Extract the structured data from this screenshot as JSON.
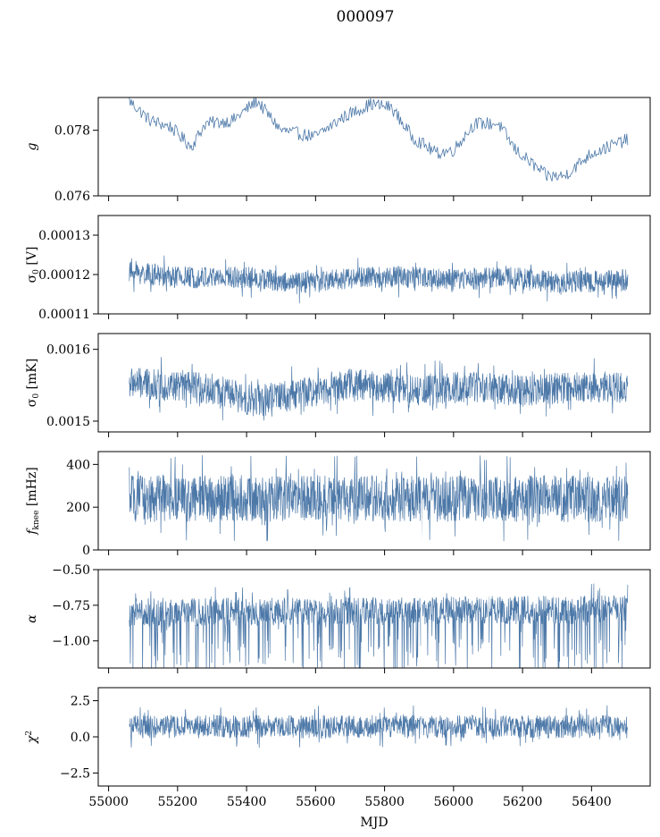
{
  "figure": {
    "title": "000097",
    "xlabel": "MJD"
  },
  "colors": {
    "series": "#4c78a8",
    "axis": "#000000"
  },
  "chart_data": [
    {
      "type": "line",
      "ylabel": "g",
      "ylim": [
        0.076,
        0.079
      ],
      "yticks": [
        0.076,
        0.078
      ],
      "ytick_labels": [
        "0.076",
        "0.078"
      ],
      "xlim": [
        54970,
        56570
      ],
      "xticks": [
        55000,
        55200,
        55400,
        55600,
        55800,
        56000,
        56200,
        56400
      ],
      "show_xtick_labels": false,
      "trend": [
        [
          55060,
          0.0789
        ],
        [
          55120,
          0.0783
        ],
        [
          55180,
          0.0781
        ],
        [
          55240,
          0.0775
        ],
        [
          55280,
          0.0782
        ],
        [
          55360,
          0.0783
        ],
        [
          55430,
          0.0789
        ],
        [
          55500,
          0.078
        ],
        [
          55600,
          0.0778
        ],
        [
          55680,
          0.0784
        ],
        [
          55760,
          0.0788
        ],
        [
          55820,
          0.0787
        ],
        [
          55880,
          0.0778
        ],
        [
          55950,
          0.0773
        ],
        [
          56000,
          0.0774
        ],
        [
          56060,
          0.0782
        ],
        [
          56130,
          0.0782
        ],
        [
          56180,
          0.0774
        ],
        [
          56270,
          0.0766
        ],
        [
          56320,
          0.0766
        ],
        [
          56400,
          0.0773
        ],
        [
          56500,
          0.0777
        ]
      ]
    },
    {
      "type": "line",
      "ylabel": "σ0 [V]",
      "ylim": [
        0.00011,
        0.000135
      ],
      "yticks": [
        0.00011,
        0.00012,
        0.00013
      ],
      "ytick_labels": [
        "0.00011",
        "0.00012",
        "0.00013"
      ],
      "xlim": [
        54970,
        56570
      ],
      "xticks": [
        55000,
        55200,
        55400,
        55600,
        55800,
        56000,
        56200,
        56400
      ],
      "show_xtick_labels": false,
      "center": [
        [
          55060,
          0.0001206
        ],
        [
          55200,
          0.0001193
        ],
        [
          55400,
          0.0001193
        ],
        [
          55550,
          0.0001178
        ],
        [
          55700,
          0.0001192
        ],
        [
          55850,
          0.0001195
        ],
        [
          56000,
          0.0001186
        ],
        [
          56150,
          0.0001195
        ],
        [
          56300,
          0.000118
        ],
        [
          56500,
          0.0001185
        ]
      ],
      "band_halfwidth": 2.8e-06
    },
    {
      "type": "line",
      "ylabel": "σ0 [mK]",
      "ylim": [
        0.001485,
        0.001622
      ],
      "yticks": [
        0.0015,
        0.0016
      ],
      "ytick_labels": [
        "0.0015",
        "0.0016"
      ],
      "xlim": [
        54970,
        56570
      ],
      "xticks": [
        55000,
        55200,
        55400,
        55600,
        55800,
        56000,
        56200,
        56400
      ],
      "show_xtick_labels": false,
      "center": [
        [
          55060,
          0.001553
        ],
        [
          55300,
          0.001545
        ],
        [
          55420,
          0.001528
        ],
        [
          55550,
          0.001538
        ],
        [
          55700,
          0.001552
        ],
        [
          55900,
          0.001542
        ],
        [
          56050,
          0.001548
        ],
        [
          56200,
          0.001542
        ],
        [
          56350,
          0.001548
        ],
        [
          56500,
          0.001547
        ]
      ],
      "band_halfwidth": 2.2e-05
    },
    {
      "type": "line",
      "ylabel": "fknee [mHz]",
      "ylim": [
        0,
        460
      ],
      "yticks": [
        0,
        200,
        400
      ],
      "ytick_labels": [
        "0",
        "200",
        "400"
      ],
      "xlim": [
        54970,
        56570
      ],
      "xticks": [
        55000,
        55200,
        55400,
        55600,
        55800,
        56000,
        56200,
        56400
      ],
      "show_xtick_labels": false,
      "center": [
        [
          55060,
          240
        ],
        [
          56500,
          240
        ]
      ],
      "band_halfwidth": 110
    },
    {
      "type": "line",
      "ylabel": "α",
      "ylim": [
        -1.19,
        -0.5
      ],
      "yticks": [
        -1.0,
        -0.75,
        -0.5
      ],
      "ytick_labels": [
        "−1.00",
        "−0.75",
        "−0.50"
      ],
      "xlim": [
        54970,
        56570
      ],
      "xticks": [
        55000,
        55200,
        55400,
        55600,
        55800,
        56000,
        56200,
        56400
      ],
      "show_xtick_labels": false,
      "center": [
        [
          55060,
          -0.8
        ],
        [
          56500,
          -0.78
        ]
      ],
      "band_halfwidth": 0.1
    },
    {
      "type": "line",
      "ylabel": "χ²",
      "ylim": [
        -3.4,
        3.4
      ],
      "yticks": [
        -2.5,
        0.0,
        2.5
      ],
      "ytick_labels": [
        "−2.5",
        "0.0",
        "2.5"
      ],
      "xlim": [
        54970,
        56570
      ],
      "xticks": [
        55000,
        55200,
        55400,
        55600,
        55800,
        56000,
        56200,
        56400
      ],
      "xtick_labels": [
        "55000",
        "55200",
        "55400",
        "55600",
        "55800",
        "56000",
        "56200",
        "56400"
      ],
      "show_xtick_labels": true,
      "center": [
        [
          55060,
          0.7
        ],
        [
          56500,
          0.7
        ]
      ],
      "band_halfwidth": 0.8
    }
  ]
}
